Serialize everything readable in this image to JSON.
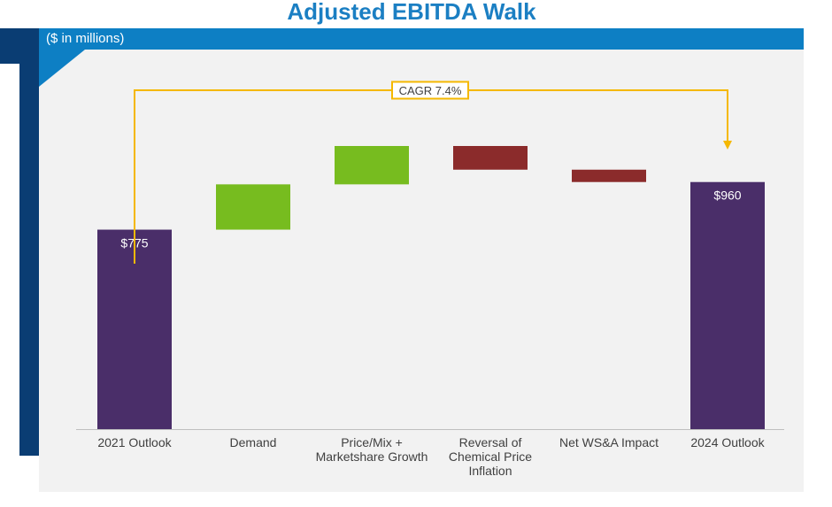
{
  "title": "Adjusted EBITDA Walk",
  "units_label": "($ in millions)",
  "colors": {
    "title": "#1b7fc3",
    "header_bar": "#0d7fc4",
    "accent_band": "#0a3d73",
    "panel": "#f2f2f2",
    "total_bar": "#4a2e69",
    "increase_bar": "#77bc1f",
    "decrease_bar": "#8b2b2b",
    "cagr_line": "#f5b800"
  },
  "chart_data": {
    "type": "bar",
    "subtype": "waterfall",
    "categories": [
      "2021 Outlook",
      "Demand",
      "Price/Mix +\nMarketshare Growth",
      "Reversal of\nChemical Price\nInflation",
      "Net WS&A Impact",
      "2024 Outlook"
    ],
    "bars": [
      {
        "category": "2021 Outlook",
        "kind": "total",
        "start": 0,
        "end": 775,
        "label": "$775"
      },
      {
        "category": "Demand",
        "kind": "increase",
        "start": 775,
        "end": 951,
        "label": ""
      },
      {
        "category": "Price/Mix +\nMarketshare Growth",
        "kind": "increase",
        "start": 951,
        "end": 1100,
        "label": ""
      },
      {
        "category": "Reversal of\nChemical Price\nInflation",
        "kind": "decrease",
        "start": 1100,
        "end": 1008,
        "label": ""
      },
      {
        "category": "Net WS&A Impact",
        "kind": "decrease",
        "start": 1008,
        "end": 960,
        "label": ""
      },
      {
        "category": "2024 Outlook",
        "kind": "total",
        "start": 0,
        "end": 960,
        "label": "$960"
      }
    ],
    "ylim": [
      0,
      1100
    ],
    "annotations": [
      {
        "text": "CAGR 7.4%",
        "from": "2021 Outlook",
        "to": "2024 Outlook"
      }
    ],
    "title": "Adjusted EBITDA Walk",
    "xlabel": "",
    "ylabel": "",
    "grid": false,
    "legend": "none"
  }
}
